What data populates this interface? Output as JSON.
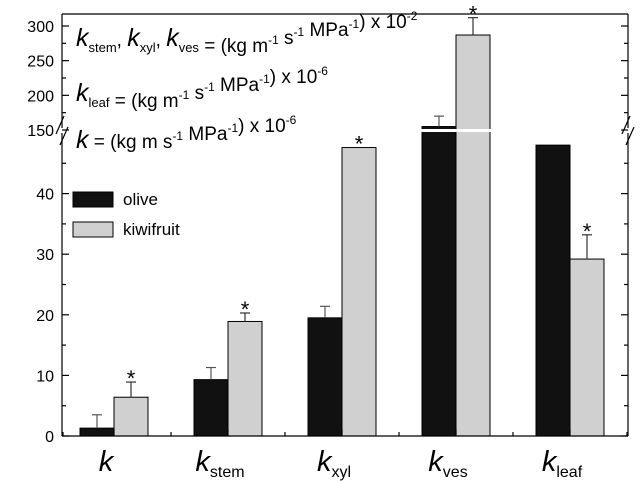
{
  "chart_data": {
    "type": "bar",
    "axis_break": {
      "lower_range": [
        0,
        50
      ],
      "upper_range": [
        150,
        300
      ]
    },
    "categories": [
      {
        "base": "k",
        "sub": ""
      },
      {
        "base": "k",
        "sub": "stem"
      },
      {
        "base": "k",
        "sub": "xyl"
      },
      {
        "base": "k",
        "sub": "ves"
      },
      {
        "base": "k",
        "sub": "leaf"
      }
    ],
    "series": [
      {
        "name": "olive",
        "color": "#111111",
        "values": [
          1.3,
          9.3,
          19.5,
          155,
          48
        ],
        "errors": [
          2.2,
          2.0,
          1.9,
          15,
          null
        ]
      },
      {
        "name": "kiwifruit",
        "color": "#d0d0d0",
        "values": [
          6.4,
          18.9,
          47.6,
          287,
          29.2
        ],
        "errors": [
          2.5,
          1.4,
          null,
          25,
          4.0
        ]
      }
    ],
    "significance": [
      "*",
      "*",
      "*",
      "*",
      "*"
    ],
    "y_ticks_lower": [
      "0",
      "10",
      "20",
      "30",
      "40"
    ],
    "y_ticks_upper": [
      "150",
      "200",
      "250",
      "300"
    ],
    "ylim": [
      0,
      300
    ],
    "legend": {
      "position": "upper-left",
      "entries": [
        "olive",
        "kiwifruit"
      ]
    },
    "annotations": [
      {
        "parts": [
          [
            "k",
            "stem"
          ],
          [
            "k",
            "xyl"
          ],
          [
            "k",
            "ves"
          ]
        ],
        "units": "(kg m-1 s-1 MPa-1) x 10-2"
      },
      {
        "parts": [
          [
            "k",
            "leaf"
          ]
        ],
        "units": "(kg m-1 s-1 MPa-1) x 10-6"
      },
      {
        "parts": [
          [
            "k",
            ""
          ]
        ],
        "units": "(kg m s-1 MPa-1) x 10-6"
      }
    ],
    "grid": false
  }
}
